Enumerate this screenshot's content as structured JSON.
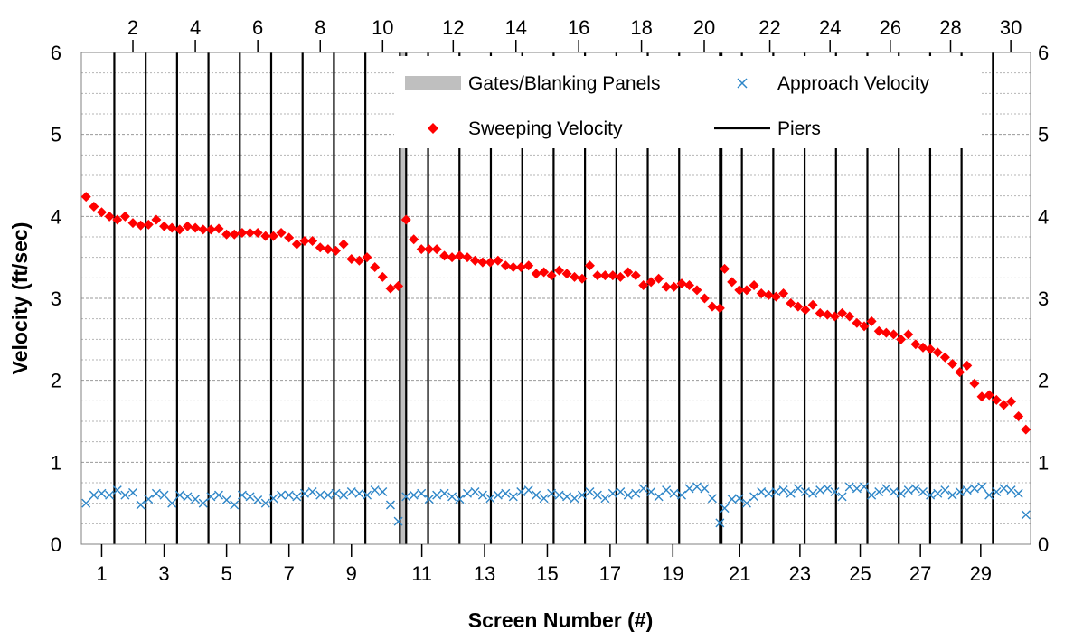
{
  "chart_data": {
    "type": "scatter",
    "xlabel": "Screen Number (#)",
    "ylabel": "Velocity (ft/sec)",
    "ylim": [
      0,
      6
    ],
    "y_ticks": [
      "0",
      "1",
      "2",
      "3",
      "4",
      "5",
      "6"
    ],
    "x_ticks_bottom": [
      "1",
      "3",
      "5",
      "7",
      "9",
      "11",
      "13",
      "15",
      "17",
      "19",
      "21",
      "23",
      "25",
      "27",
      "29"
    ],
    "x_ticks_top": [
      "2",
      "4",
      "6",
      "8",
      "10",
      "12",
      "14",
      "16",
      "18",
      "20",
      "22",
      "24",
      "26",
      "28",
      "30"
    ],
    "grid": "horizontal minor",
    "legend_position": "top-right",
    "legend": [
      {
        "label": "Gates/Blanking Panels",
        "kind": "area",
        "color": "#bfbfbf"
      },
      {
        "label": "Approach Velocity",
        "kind": "cross",
        "color": "#2e86c8"
      },
      {
        "label": "Sweeping Velocity",
        "kind": "diamond",
        "color": "#ff0000"
      },
      {
        "label": "Piers",
        "kind": "line",
        "color": "#000000"
      }
    ],
    "gate_regions": [
      [
        10.6,
        10.8
      ],
      [
        20.8,
        20.85
      ]
    ],
    "series": [
      {
        "name": "Sweeping Velocity",
        "color": "#ff0000",
        "marker": "diamond",
        "groups": [
          {
            "x_start": 0.6,
            "x_end": 10.55,
            "values": [
              4.24,
              4.12,
              4.05,
              4.0,
              3.96,
              4.0,
              3.92,
              3.89,
              3.9,
              3.96,
              3.88,
              3.86,
              3.84,
              3.88,
              3.86,
              3.84,
              3.84,
              3.85,
              3.78,
              3.78,
              3.8,
              3.8,
              3.8,
              3.76,
              3.76,
              3.8,
              3.74,
              3.66,
              3.7,
              3.7,
              3.62,
              3.6,
              3.58,
              3.66,
              3.48,
              3.46,
              3.5,
              3.38,
              3.26,
              3.12,
              3.15
            ]
          },
          {
            "x_start": 10.8,
            "x_end": 20.8,
            "values": [
              3.96,
              3.72,
              3.6,
              3.6,
              3.6,
              3.52,
              3.5,
              3.52,
              3.5,
              3.46,
              3.44,
              3.44,
              3.46,
              3.4,
              3.38,
              3.38,
              3.4,
              3.3,
              3.32,
              3.28,
              3.34,
              3.3,
              3.26,
              3.24,
              3.4,
              3.28,
              3.28,
              3.28,
              3.26,
              3.32,
              3.28,
              3.16,
              3.2,
              3.24,
              3.14,
              3.14,
              3.18,
              3.16,
              3.1,
              3.0,
              2.9,
              2.88
            ]
          },
          {
            "x_start": 20.95,
            "x_end": 30.55,
            "values": [
              3.36,
              3.2,
              3.1,
              3.1,
              3.16,
              3.06,
              3.04,
              3.02,
              3.06,
              2.94,
              2.9,
              2.86,
              2.92,
              2.82,
              2.8,
              2.78,
              2.82,
              2.78,
              2.7,
              2.66,
              2.72,
              2.6,
              2.58,
              2.56,
              2.5,
              2.56,
              2.44,
              2.4,
              2.38,
              2.34,
              2.28,
              2.2,
              2.1,
              2.18,
              1.96,
              1.8,
              1.82,
              1.76,
              1.7,
              1.74,
              1.56,
              1.4
            ]
          }
        ]
      },
      {
        "name": "Approach Velocity",
        "color": "#2e86c8",
        "marker": "cross",
        "groups": [
          {
            "x_start": 0.6,
            "x_end": 10.55,
            "values": [
              0.5,
              0.6,
              0.62,
              0.6,
              0.66,
              0.6,
              0.63,
              0.48,
              0.55,
              0.62,
              0.6,
              0.5,
              0.6,
              0.58,
              0.55,
              0.5,
              0.58,
              0.6,
              0.54,
              0.48,
              0.6,
              0.58,
              0.54,
              0.5,
              0.56,
              0.6,
              0.6,
              0.58,
              0.62,
              0.64,
              0.6,
              0.6,
              0.62,
              0.6,
              0.64,
              0.62,
              0.6,
              0.66,
              0.64,
              0.48,
              0.28
            ]
          },
          {
            "x_start": 10.8,
            "x_end": 20.8,
            "values": [
              0.58,
              0.6,
              0.62,
              0.55,
              0.6,
              0.62,
              0.58,
              0.55,
              0.62,
              0.64,
              0.6,
              0.56,
              0.6,
              0.62,
              0.58,
              0.64,
              0.66,
              0.6,
              0.56,
              0.62,
              0.6,
              0.58,
              0.56,
              0.6,
              0.64,
              0.6,
              0.56,
              0.62,
              0.64,
              0.6,
              0.62,
              0.68,
              0.64,
              0.58,
              0.66,
              0.62,
              0.6,
              0.68,
              0.7,
              0.68,
              0.56,
              0.26
            ]
          },
          {
            "x_start": 20.95,
            "x_end": 30.55,
            "values": [
              0.44,
              0.55,
              0.56,
              0.5,
              0.58,
              0.64,
              0.62,
              0.64,
              0.66,
              0.62,
              0.68,
              0.64,
              0.62,
              0.66,
              0.68,
              0.64,
              0.58,
              0.7,
              0.68,
              0.7,
              0.6,
              0.64,
              0.68,
              0.64,
              0.62,
              0.66,
              0.68,
              0.64,
              0.6,
              0.62,
              0.66,
              0.6,
              0.64,
              0.66,
              0.68,
              0.7,
              0.6,
              0.64,
              0.68,
              0.66,
              0.62,
              0.36
            ]
          }
        ]
      }
    ]
  }
}
